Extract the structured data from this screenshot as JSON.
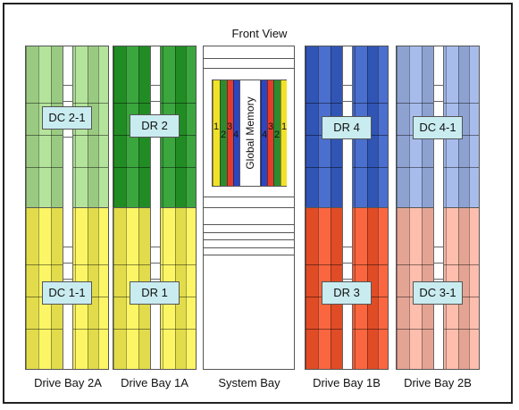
{
  "title": "Front View",
  "colors": {
    "light_green": "#a8d890",
    "dark_green": "#2f9a32",
    "yellow": "#f0ea5a",
    "blue": "#3f63c2",
    "light_blue": "#9cb0e0",
    "orange": "#ee5a34",
    "salmon": "#f2b2a2",
    "label_fill": "#c9ecf0",
    "memory_red": "#e53b2c",
    "memory_blue": "#2d46c0",
    "memory_green": "#2f8a2f",
    "memory_yellow": "#f2e12a"
  },
  "bays": {
    "drive_bay_2a": {
      "caption": "Drive Bay 2A",
      "top_label": "DC 2-1",
      "bottom_label": "DC 1-1",
      "top_color": "light_green",
      "bottom_color": "yellow"
    },
    "drive_bay_1a": {
      "caption": "Drive Bay 1A",
      "top_label": "DR 2",
      "bottom_label": "DR 1",
      "top_color": "dark_green",
      "bottom_color": "yellow"
    },
    "system_bay": {
      "caption": "System Bay",
      "memory_label": "Global Memory",
      "left_numbers": [
        "1",
        "2",
        "3",
        "4"
      ],
      "right_numbers": [
        "4",
        "3",
        "2",
        "1"
      ]
    },
    "drive_bay_1b": {
      "caption": "Drive Bay 1B",
      "top_label": "DR 4",
      "bottom_label": "DR 3",
      "top_color": "blue",
      "bottom_color": "orange"
    },
    "drive_bay_2b": {
      "caption": "Drive Bay 2B",
      "top_label": "DC 4-1",
      "bottom_label": "DC 3-1",
      "top_color": "light_blue",
      "bottom_color": "salmon"
    }
  }
}
